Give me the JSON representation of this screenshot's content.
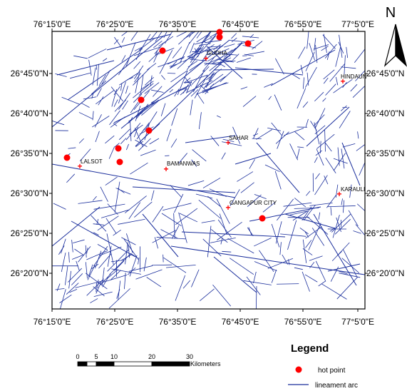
{
  "map": {
    "top_ticks": [
      "76°15'0\"E",
      "76°25'0\"E",
      "76°35'0\"E",
      "76°45'0\"E",
      "76°55'0\"E",
      "77°5'0\"E"
    ],
    "bottom_ticks": [
      "76°15'0\"E",
      "76°25'0\"E",
      "76°35'0\"E",
      "76°45'0\"E",
      "76°55'0\"E",
      "77°5'0\"E"
    ],
    "left_ticks": [
      "26°45'0\"N",
      "26°40'0\"N",
      "26°35'0\"N",
      "26°30'0\"N",
      "26°25'0\"N",
      "26°20'0\"N"
    ],
    "right_ticks": [
      "26°45'0\"N",
      "26°40'0\"N",
      "26°35'0\"N",
      "26°30'0\"N",
      "26°25'0\"N",
      "26°20'0\"N"
    ],
    "towns": [
      "GUDHA",
      "HINDAUN",
      "SAHAR",
      "LALSOT",
      "BAMANWAS",
      "KARAULI",
      "GANGAPUR CITY"
    ],
    "hot_point_color": "#ff0000",
    "lineament_color": "#1a2e9c",
    "town_marker_color": "#ff0000"
  },
  "north_arrow": {
    "label": "N"
  },
  "scale_bar": {
    "ticks": [
      "0",
      "5",
      "10",
      "20",
      "30"
    ],
    "unit": "Kilometers"
  },
  "legend": {
    "title": "Legend",
    "items": [
      {
        "label": "hot point",
        "symbol": "red-dot"
      },
      {
        "label": "lineament arc",
        "symbol": "blue-line"
      }
    ]
  }
}
